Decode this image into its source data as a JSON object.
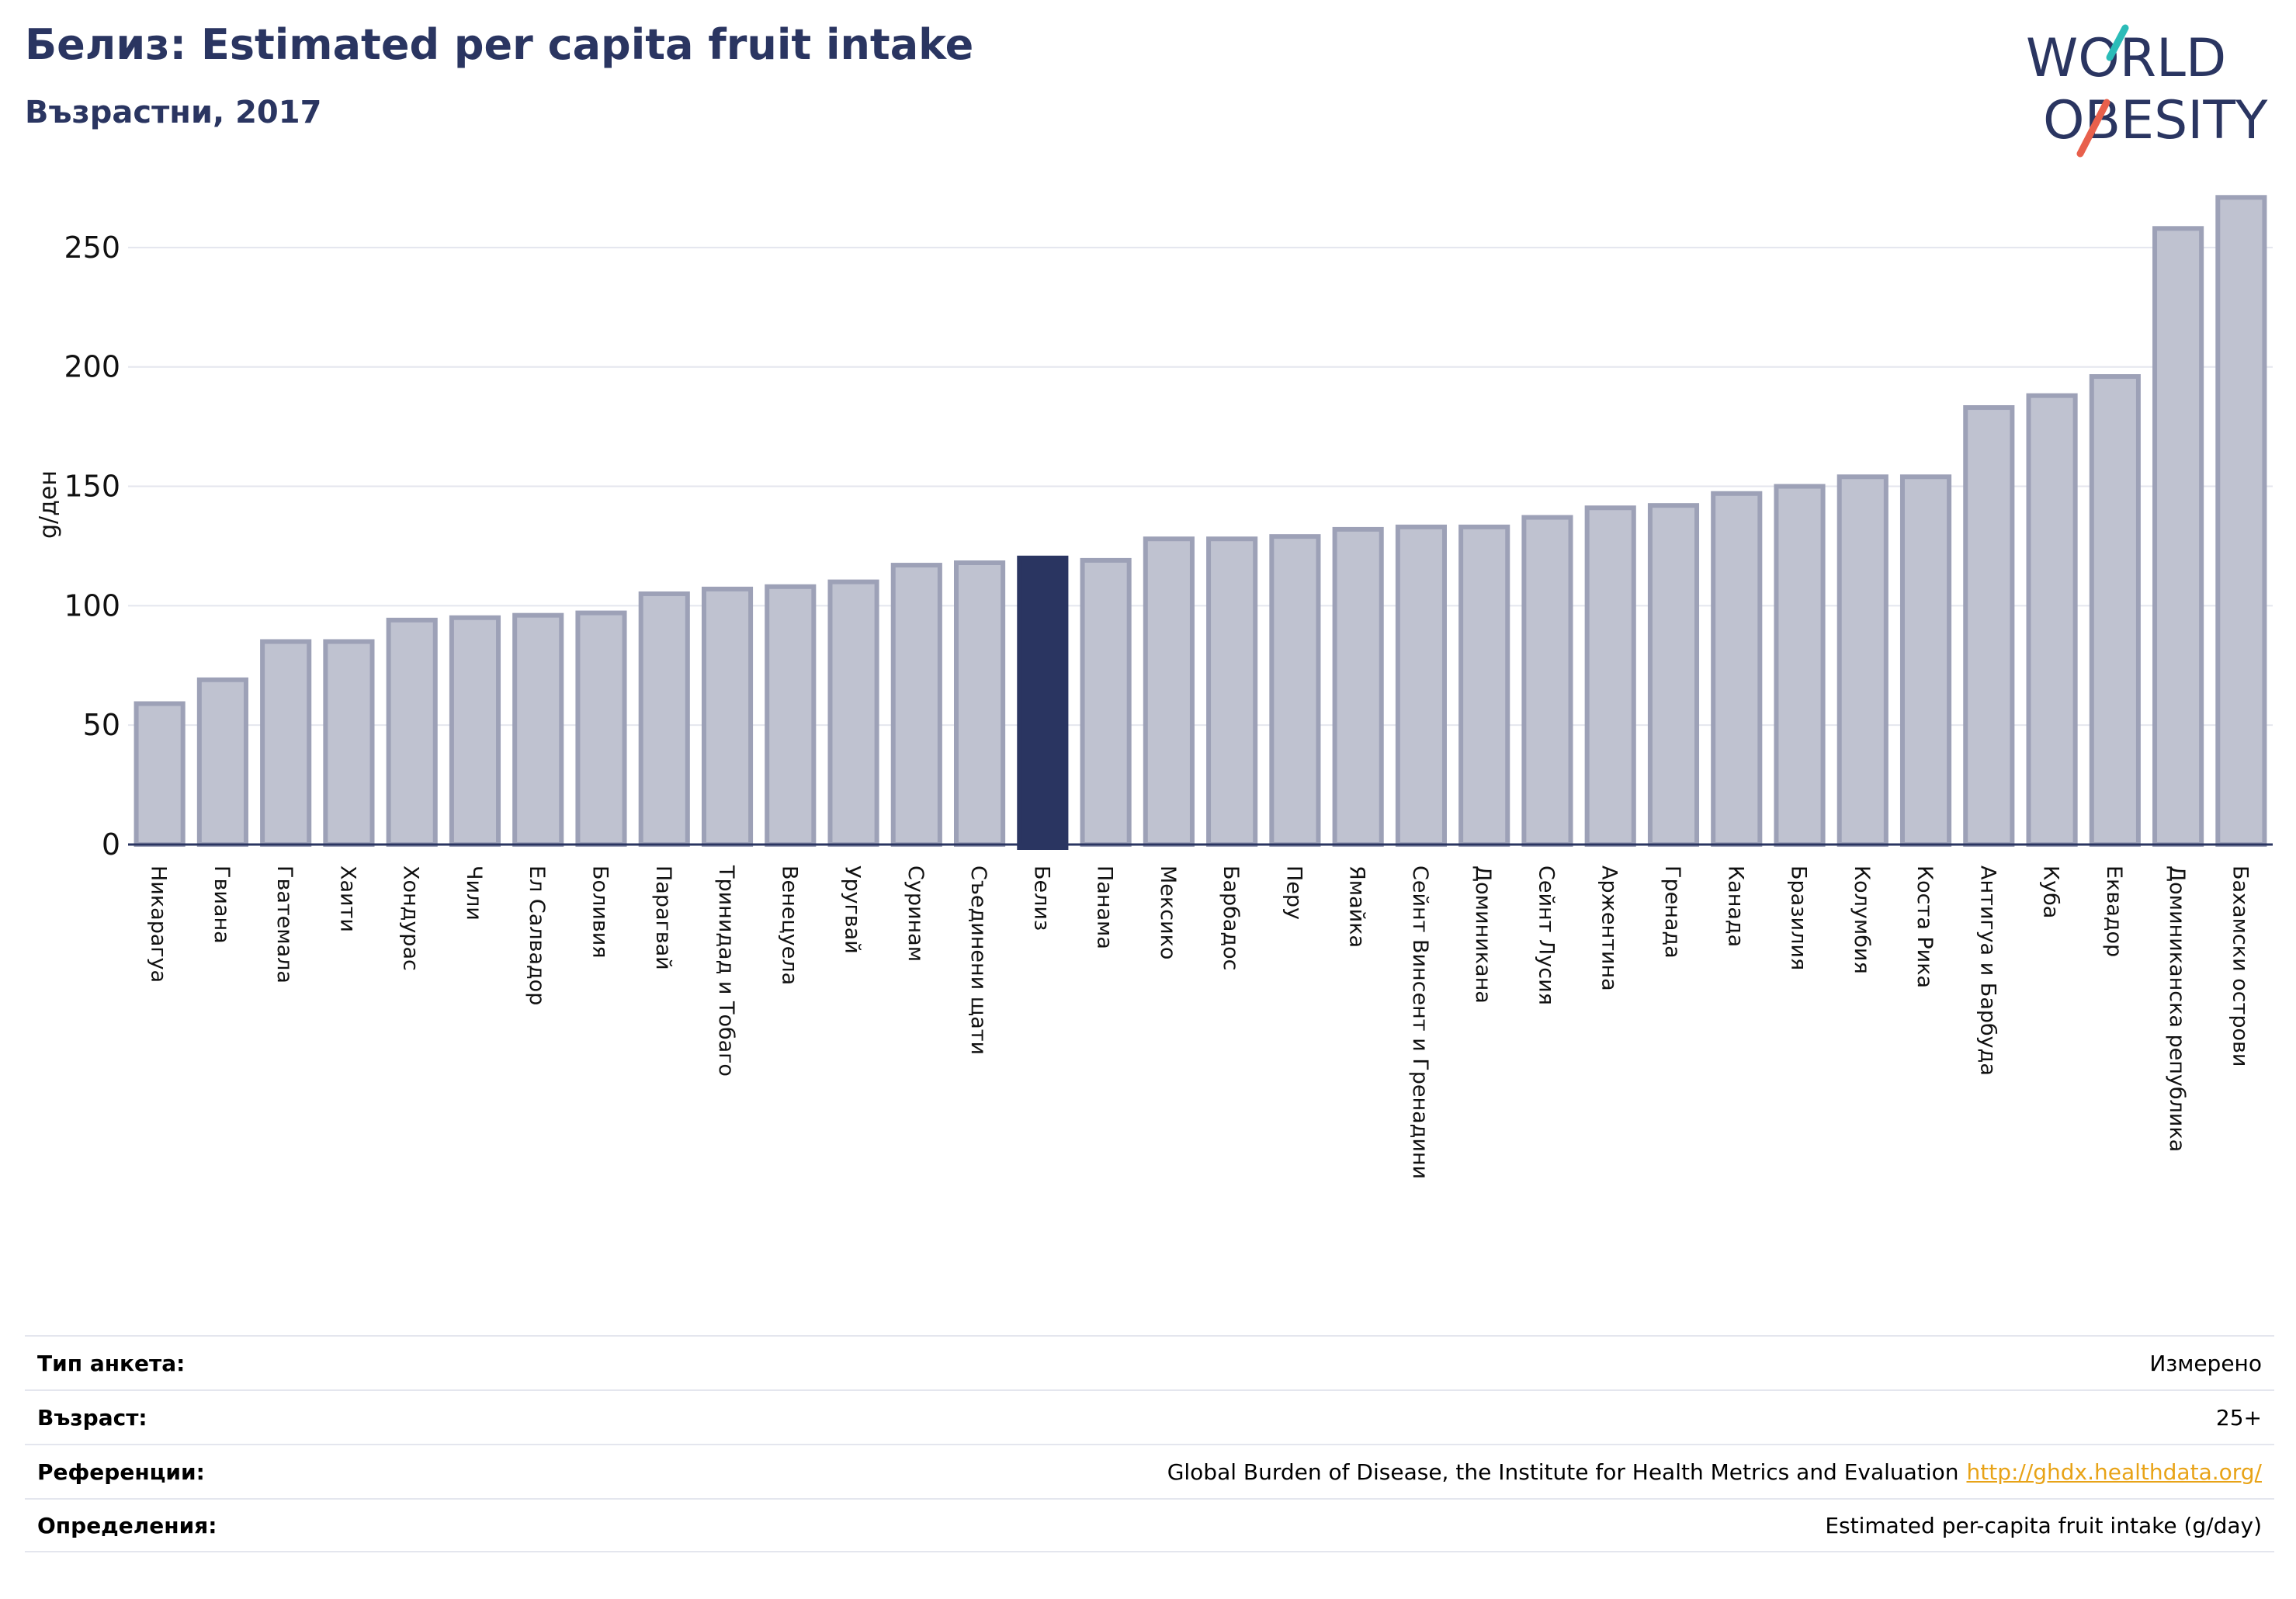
{
  "header": {
    "title": "Белиз: Estimated per capita fruit intake",
    "subtitle": "Възрастни, 2017"
  },
  "logo": {
    "line1": "WORLD",
    "line2": "OBESITY",
    "text_color": "#2a3561",
    "accent_teal": "#2bbcb8",
    "accent_red": "#e8604c"
  },
  "colors": {
    "bar": "#bfc2d0",
    "bar_border": "#9da1b7",
    "highlight": "#2a3561",
    "axis": "#2a3561",
    "grid": "#e4e6ee"
  },
  "chart_data": {
    "type": "bar",
    "title": "Белиз: Estimated per capita fruit intake",
    "subtitle": "Възрастни, 2017",
    "xlabel": "",
    "ylabel": "g/ден",
    "ylim": [
      0,
      275
    ],
    "yticks": [
      0,
      50,
      100,
      150,
      200,
      250
    ],
    "grid": true,
    "highlight_category": "Белиз",
    "categories": [
      "Никарагуа",
      "Гвиана",
      "Гватемала",
      "Хаити",
      "Хондурас",
      "Чили",
      "Ел Салвадор",
      "Боливия",
      "Парагвай",
      "Тринидад и Тобаго",
      "Венецуела",
      "Уругвай",
      "Суринам",
      "Съединени щати",
      "Белиз",
      "Панама",
      "Мексико",
      "Барбадос",
      "Перу",
      "Ямайка",
      "Сейнт Винсент и Гренадини",
      "Доминикана",
      "Сейнт Лусия",
      "Аржентина",
      "Гренада",
      "Канада",
      "Бразилия",
      "Колумбия",
      "Коста Рика",
      "Антигуа и Барбуда",
      "Куба",
      "Еквадор",
      "Доминиканска република",
      "Бахамски острови"
    ],
    "values": [
      59,
      69,
      85,
      85,
      94,
      95,
      96,
      97,
      105,
      107,
      108,
      110,
      117,
      118,
      120,
      119,
      128,
      128,
      129,
      132,
      133,
      133,
      137,
      141,
      142,
      147,
      150,
      154,
      154,
      183,
      188,
      196,
      258,
      271
    ]
  },
  "meta": [
    {
      "label": "Тип анкета:",
      "value": "Измерено"
    },
    {
      "label": "Възраст:",
      "value": "25+"
    },
    {
      "label": "Референции:",
      "value": "Global Burden of Disease, the Institute for Health Metrics and Evaluation",
      "link": "http://ghdx.healthdata.org/"
    },
    {
      "label": "Определения:",
      "value": "Estimated per-capita fruit intake (g/day)"
    }
  ]
}
